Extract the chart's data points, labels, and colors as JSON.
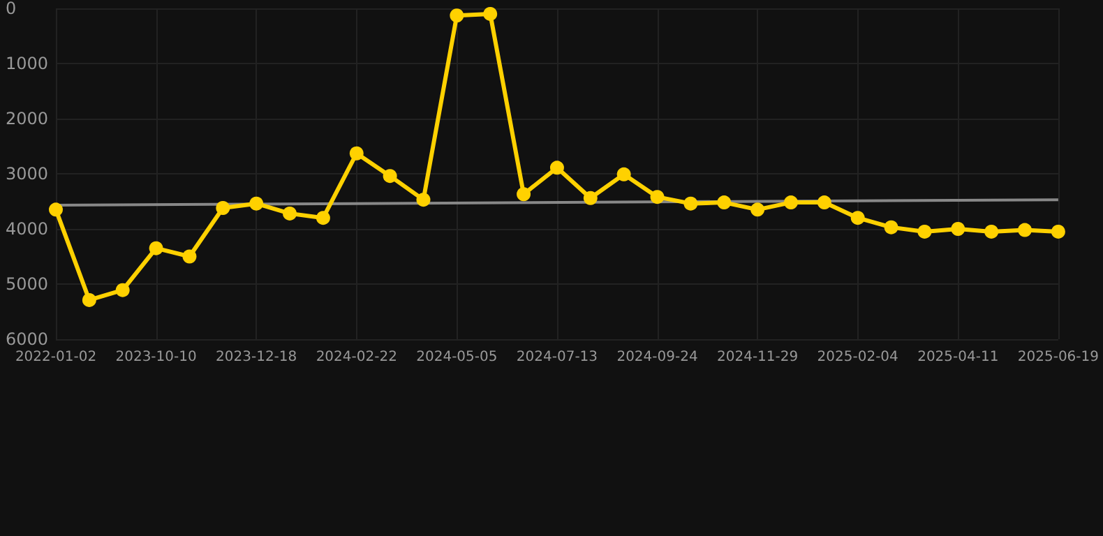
{
  "chart_data": {
    "type": "line",
    "categories": [
      "2022-01-02",
      null,
      null,
      "2023-10-10",
      null,
      null,
      "2023-12-18",
      null,
      null,
      "2024-02-22",
      null,
      null,
      "2024-05-05",
      null,
      null,
      "2024-07-13",
      null,
      null,
      "2024-09-24",
      null,
      null,
      "2024-11-29",
      null,
      null,
      "2025-02-04",
      null,
      null,
      "2025-04-11",
      null,
      null,
      "2025-06-19"
    ],
    "series": [
      {
        "color": "#ffd100",
        "marker": "circle",
        "values": [
          3650,
          5290,
          5110,
          4350,
          4500,
          3620,
          3540,
          3720,
          3800,
          2630,
          3040,
          3470,
          130,
          100,
          3370,
          2890,
          3440,
          3010,
          3420,
          3540,
          3520,
          3650,
          3520,
          3520,
          3800,
          3970,
          4050,
          4000,
          4050,
          4020,
          4050
        ]
      },
      {
        "type": "line",
        "color": "#888888",
        "marker": "none",
        "values": [
          3570,
          null,
          null,
          null,
          null,
          null,
          null,
          null,
          null,
          null,
          null,
          null,
          null,
          null,
          null,
          null,
          null,
          null,
          null,
          null,
          null,
          null,
          null,
          null,
          null,
          null,
          null,
          null,
          null,
          null,
          3470
        ]
      }
    ],
    "ylim": [
      6000,
      0
    ],
    "yticks": [
      0,
      1000,
      2000,
      3000,
      4000,
      5000,
      6000
    ],
    "grid": true
  }
}
